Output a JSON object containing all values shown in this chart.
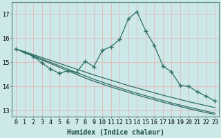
{
  "xlabel": "Humidex (Indice chaleur)",
  "background_color": "#cce8e8",
  "grid_color": "#e8b0b0",
  "line_color": "#2d6e65",
  "xlim": [
    -0.5,
    23.5
  ],
  "ylim": [
    12.75,
    17.5
  ],
  "xticks": [
    0,
    1,
    2,
    3,
    4,
    5,
    6,
    7,
    8,
    9,
    10,
    11,
    12,
    13,
    14,
    15,
    16,
    17,
    18,
    19,
    20,
    21,
    22,
    23
  ],
  "yticks": [
    13,
    14,
    15,
    16,
    17
  ],
  "main_line_x": [
    0,
    1,
    2,
    3,
    4,
    5,
    6,
    7,
    8,
    9,
    10,
    11,
    12,
    13,
    14,
    15,
    16,
    17,
    18,
    19,
    20,
    21,
    22,
    23
  ],
  "main_line_y": [
    15.55,
    15.42,
    15.25,
    14.98,
    14.72,
    14.55,
    14.65,
    14.58,
    15.05,
    14.82,
    15.5,
    15.65,
    15.95,
    16.8,
    17.1,
    16.3,
    15.7,
    14.85,
    14.6,
    14.05,
    14.0,
    13.78,
    13.6,
    13.4
  ],
  "reg_line1_y": [
    15.55,
    15.4,
    15.25,
    15.1,
    14.95,
    14.8,
    14.65,
    14.5,
    14.35,
    14.22,
    14.1,
    13.98,
    13.87,
    13.76,
    13.65,
    13.55,
    13.45,
    13.35,
    13.26,
    13.17,
    13.08,
    13.0,
    12.92,
    12.85
  ],
  "reg_line2_y": [
    15.55,
    15.42,
    15.28,
    15.14,
    15.0,
    14.86,
    14.72,
    14.58,
    14.44,
    14.3,
    14.18,
    14.06,
    13.94,
    13.83,
    13.72,
    13.62,
    13.52,
    13.42,
    13.32,
    13.23,
    13.14,
    13.06,
    12.98,
    12.9
  ],
  "reg_line3_y": [
    15.55,
    15.44,
    15.32,
    15.2,
    15.08,
    14.96,
    14.84,
    14.72,
    14.6,
    14.48,
    14.37,
    14.26,
    14.15,
    14.04,
    13.94,
    13.84,
    13.74,
    13.64,
    13.55,
    13.46,
    13.37,
    13.29,
    13.21,
    13.13
  ],
  "marker_style": "+",
  "marker_size": 5,
  "line_width": 0.9,
  "font_size_ticks": 6,
  "font_size_label": 7
}
